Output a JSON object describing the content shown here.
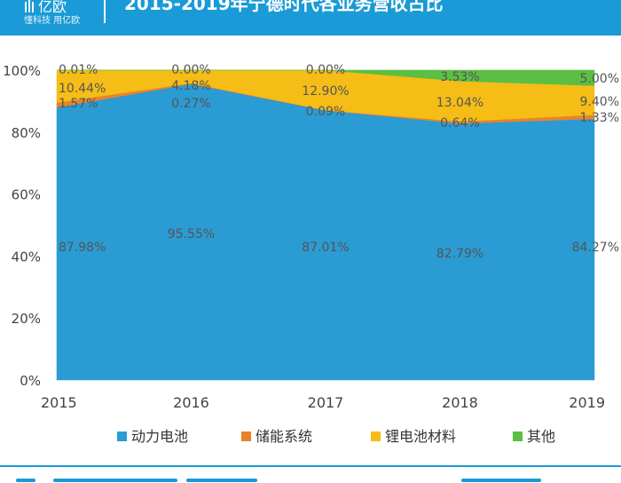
{
  "header": {
    "logo_name": "亿欧",
    "logo_tagline": "懂科技 用亿欧",
    "title": "2015-2019年宁德时代各业务营收占比"
  },
  "colors": {
    "brand": "#1a9ad6",
    "power_battery": "#2b9bd3",
    "storage": "#e8832a",
    "materials": "#f5bd16",
    "other": "#5bbf44"
  },
  "chart_data": {
    "type": "area",
    "stacked": true,
    "title": "2015-2019年宁德时代各业务营收占比",
    "categories": [
      "2015",
      "2016",
      "2017",
      "2018",
      "2019"
    ],
    "ylim": [
      0,
      100
    ],
    "yticks": [
      "0%",
      "20%",
      "40%",
      "60%",
      "80%",
      "100%"
    ],
    "series": [
      {
        "name": "动力电池",
        "color": "#2b9bd3",
        "values": [
          87.98,
          95.55,
          87.01,
          82.79,
          84.27
        ],
        "labels": [
          "87.98%",
          "95.55%",
          "87.01%",
          "82.79%",
          "84.27%"
        ]
      },
      {
        "name": "储能系统",
        "color": "#e8832a",
        "values": [
          1.57,
          0.27,
          0.09,
          0.64,
          1.33
        ],
        "labels": [
          "1.57%",
          "0.27%",
          "0.09%",
          "0.64%",
          "1.33%"
        ]
      },
      {
        "name": "锂电池材料",
        "color": "#f5bd16",
        "values": [
          10.44,
          4.18,
          12.9,
          13.04,
          9.4
        ],
        "labels": [
          "10.44%",
          "4.18%",
          "12.90%",
          "13.04%",
          "9.40%"
        ]
      },
      {
        "name": "其他",
        "color": "#5bbf44",
        "values": [
          0.01,
          0.0,
          0.0,
          3.53,
          5.0
        ],
        "labels": [
          "0.01%",
          "0.00%",
          "0.00%",
          "3.53%",
          "5.00%"
        ]
      }
    ],
    "legend_position": "bottom",
    "grid": false
  }
}
